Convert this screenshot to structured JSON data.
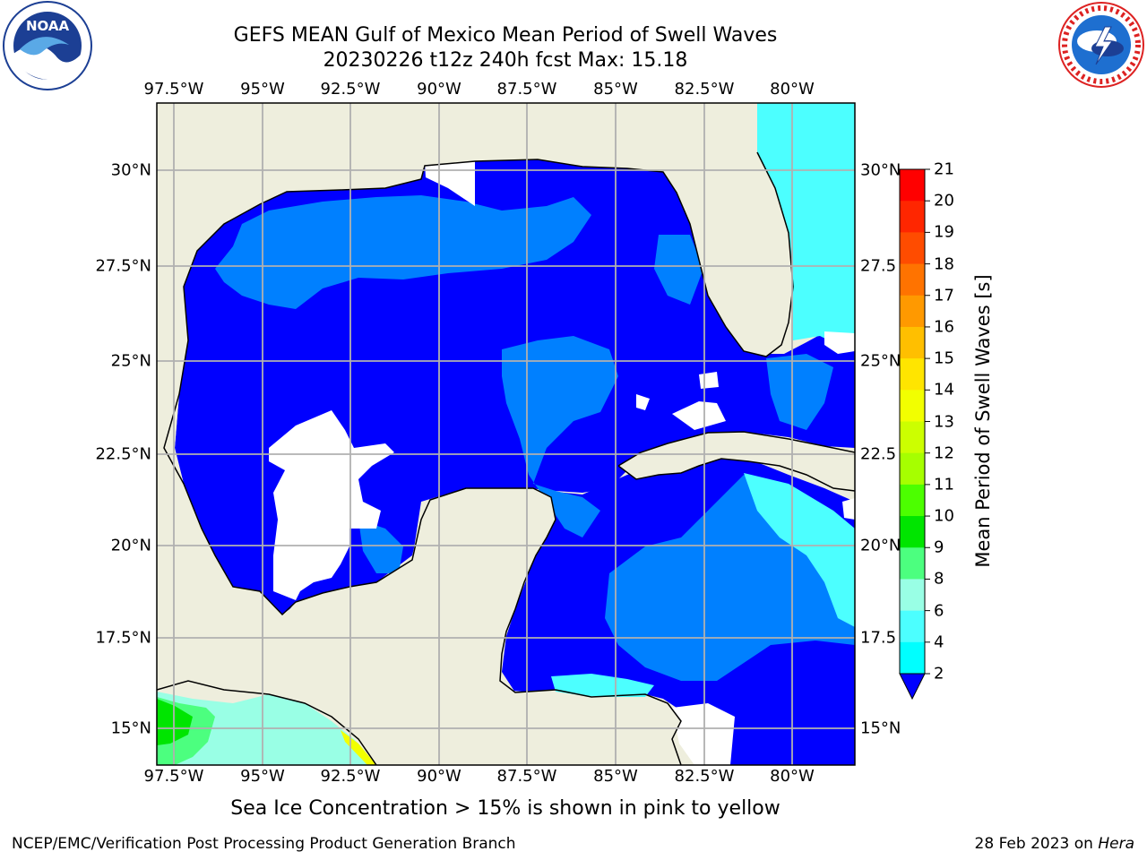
{
  "title_line1": "GEFS MEAN Gulf of Mexico Mean Period of Swell Waves",
  "title_line2": "20230226 t12z 240h fcst   Max: 15.18",
  "longitude_labels": [
    "97.5°W",
    "95°W",
    "92.5°W",
    "90°W",
    "87.5°W",
    "85°W",
    "82.5°W",
    "80°W"
  ],
  "latitude_labels_left": [
    "30°N",
    "27.5°N",
    "25°N",
    "22.5°N",
    "20°N",
    "17.5°N",
    "15°N"
  ],
  "latitude_labels_right": [
    "30°N",
    "27.5",
    "25°N",
    "22.5",
    "20°N",
    "17.5",
    "15°N"
  ],
  "colorbar": {
    "title": "Mean Period of Swell Waves [s]",
    "ticks": [
      "21",
      "20",
      "19",
      "18",
      "17",
      "16",
      "15",
      "14",
      "13",
      "12",
      "11",
      "10",
      "9",
      "8",
      "6",
      "4",
      "2"
    ],
    "colors": [
      "#ff0000",
      "#ff2600",
      "#ff4c00",
      "#ff7300",
      "#ff9900",
      "#ffbf00",
      "#ffe500",
      "#f2ff00",
      "#ccff00",
      "#a6ff00",
      "#4cff00",
      "#00e500",
      "#4cff7f",
      "#99ffe5",
      "#4cffff",
      "#00ffff",
      "#0080ff"
    ],
    "extend_color": "#0000ff"
  },
  "map": {
    "ocean_deep": "#0000ff",
    "ocean_mid": "#0080ff",
    "ocean_light": "#4cffff",
    "land": "#eeeedd",
    "no_data": "#ffffff",
    "grid": "#b0b0b0"
  },
  "footnote": "Sea Ice Concentration > 15% is shown in pink to yellow",
  "credit": "NCEP/EMC/Verification Post Processing Product Generation Branch",
  "date_text": "28 Feb 2023 on ",
  "date_host": "Hera",
  "logos": {
    "left": {
      "name": "NOAA",
      "text": "NOAA",
      "ring_text": "NATIONAL OCEANIC AND ATMOSPHERIC ADMINISTRATION · U.S. DEPARTMENT OF COMMERCE"
    },
    "right": {
      "name": "National Weather Service",
      "ring_text": "NATIONAL WEATHER SERVICE"
    }
  }
}
